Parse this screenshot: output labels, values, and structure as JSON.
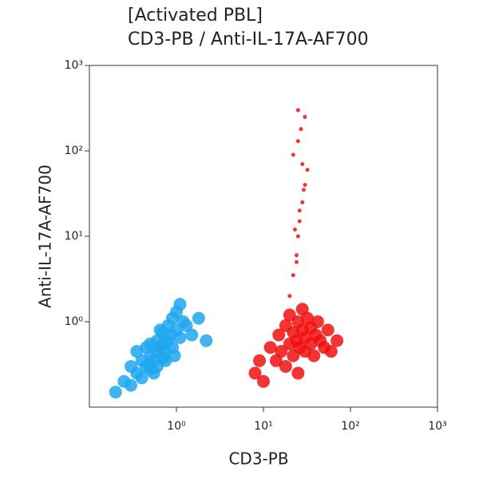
{
  "chart_data": {
    "type": "scatter",
    "title": "[Activated PBL]",
    "subtitle": "CD3-PB / Anti-IL-17A-AF700",
    "x_label": "CD3-PB",
    "y_label": "Anti-IL-17A-AF700",
    "log_x": true,
    "log_y": true,
    "xlim": [
      0.1,
      1000
    ],
    "ylim": [
      0.1,
      1000
    ],
    "xticks": [
      {
        "value": 1,
        "label": "10⁰"
      },
      {
        "value": 10,
        "label": "10¹"
      },
      {
        "value": 100,
        "label": "10²"
      },
      {
        "value": 1000,
        "label": "10³"
      }
    ],
    "yticks": [
      {
        "value": 1,
        "label": "10⁰"
      },
      {
        "value": 10,
        "label": "10¹"
      },
      {
        "value": 100,
        "label": "10²"
      },
      {
        "value": 1000,
        "label": "10³"
      }
    ],
    "series": [
      {
        "color": "#1ea7ef",
        "x": [
          0.2,
          0.25,
          0.3,
          0.3,
          0.35,
          0.4,
          0.4,
          0.45,
          0.5,
          0.5,
          0.5,
          0.55,
          0.6,
          0.6,
          0.6,
          0.65,
          0.7,
          0.7,
          0.7,
          0.75,
          0.8,
          0.8,
          0.85,
          0.9,
          0.9,
          1.0,
          1.0,
          1.1,
          1.2,
          1.3,
          1.5,
          1.8,
          2.2,
          0.35,
          0.45,
          0.55,
          0.65,
          0.75,
          0.95,
          1.1
        ],
        "y": [
          0.15,
          0.2,
          0.18,
          0.3,
          0.25,
          0.22,
          0.35,
          0.3,
          0.28,
          0.4,
          0.55,
          0.35,
          0.3,
          0.45,
          0.6,
          0.5,
          0.38,
          0.55,
          0.75,
          0.45,
          0.6,
          0.9,
          0.7,
          0.5,
          1.1,
          0.8,
          1.3,
          0.65,
          1.0,
          0.9,
          0.7,
          1.1,
          0.6,
          0.45,
          0.5,
          0.25,
          0.8,
          0.35,
          0.4,
          1.6
        ]
      },
      {
        "color": "#f01010",
        "x": [
          12,
          14,
          15,
          16,
          18,
          18,
          20,
          20,
          22,
          22,
          24,
          25,
          25,
          26,
          28,
          28,
          30,
          30,
          32,
          35,
          35,
          38,
          40,
          42,
          45,
          50,
          55,
          60,
          70,
          8,
          9,
          10,
          20,
          22,
          24,
          25,
          26,
          28,
          30,
          32,
          22,
          25,
          27,
          30,
          24,
          26,
          28,
          23,
          29,
          25
        ],
        "y": [
          0.5,
          0.35,
          0.7,
          0.45,
          0.3,
          0.9,
          0.55,
          1.2,
          0.4,
          0.75,
          0.6,
          0.25,
          1.0,
          0.5,
          0.8,
          1.4,
          0.45,
          0.65,
          1.1,
          0.55,
          0.85,
          0.4,
          0.7,
          1.0,
          0.6,
          0.5,
          0.8,
          0.45,
          0.6,
          0.25,
          0.35,
          0.2,
          2,
          3.5,
          6,
          10,
          15,
          25,
          40,
          60,
          90,
          130,
          180,
          250,
          5,
          20,
          70,
          12,
          35,
          300
        ]
      }
    ]
  }
}
